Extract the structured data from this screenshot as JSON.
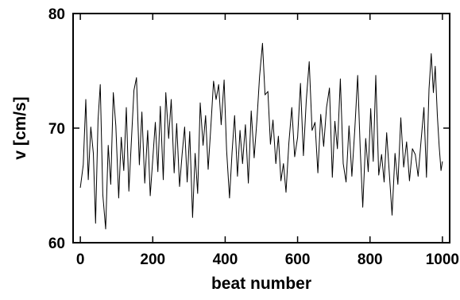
{
  "chart_data": {
    "type": "line",
    "title": "",
    "xlabel": "beat number",
    "ylabel": "v [cm/s]",
    "xlim": [
      -20,
      1020
    ],
    "ylim": [
      60,
      80
    ],
    "xticks": [
      0,
      200,
      400,
      600,
      800,
      1000
    ],
    "yticks": [
      60,
      70,
      80
    ],
    "grid": false,
    "legend": "none",
    "series": [
      {
        "color": "#000000",
        "points": [
          [
            0,
            64.8
          ],
          [
            8,
            66.8
          ],
          [
            15,
            72.5
          ],
          [
            22,
            65.5
          ],
          [
            29,
            70.1
          ],
          [
            36,
            67.8
          ],
          [
            42,
            61.7
          ],
          [
            49,
            70.7
          ],
          [
            55,
            73.8
          ],
          [
            62,
            64.2
          ],
          [
            70,
            61.2
          ],
          [
            77,
            68.5
          ],
          [
            84,
            65.1
          ],
          [
            91,
            73.1
          ],
          [
            98,
            70.2
          ],
          [
            106,
            63.9
          ],
          [
            113,
            69.2
          ],
          [
            120,
            66.3
          ],
          [
            127,
            71.8
          ],
          [
            134,
            64.5
          ],
          [
            141,
            68.9
          ],
          [
            148,
            73.3
          ],
          [
            155,
            74.4
          ],
          [
            163,
            66.8
          ],
          [
            170,
            71.4
          ],
          [
            178,
            65.2
          ],
          [
            186,
            69.8
          ],
          [
            193,
            64.1
          ],
          [
            200,
            67.3
          ],
          [
            207,
            70.5
          ],
          [
            214,
            66.2
          ],
          [
            221,
            71.9
          ],
          [
            229,
            65.5
          ],
          [
            236,
            73.1
          ],
          [
            244,
            69.1
          ],
          [
            251,
            72.5
          ],
          [
            259,
            66.1
          ],
          [
            266,
            70.4
          ],
          [
            274,
            64.9
          ],
          [
            281,
            67.7
          ],
          [
            288,
            70.1
          ],
          [
            295,
            65.3
          ],
          [
            302,
            69.7
          ],
          [
            310,
            62.2
          ],
          [
            317,
            67.8
          ],
          [
            324,
            64.3
          ],
          [
            331,
            72.2
          ],
          [
            339,
            68.5
          ],
          [
            346,
            71.1
          ],
          [
            353,
            66.4
          ],
          [
            360,
            69.9
          ],
          [
            368,
            74.1
          ],
          [
            375,
            72.5
          ],
          [
            382,
            73.8
          ],
          [
            389,
            70.3
          ],
          [
            397,
            74.2
          ],
          [
            404,
            68.1
          ],
          [
            412,
            63.9
          ],
          [
            419,
            67.9
          ],
          [
            426,
            71.1
          ],
          [
            434,
            65.8
          ],
          [
            441,
            69.8
          ],
          [
            448,
            66.9
          ],
          [
            456,
            70.3
          ],
          [
            464,
            65.2
          ],
          [
            472,
            71.5
          ],
          [
            480,
            67.4
          ],
          [
            488,
            70.8
          ],
          [
            495,
            74.5
          ],
          [
            503,
            77.4
          ],
          [
            510,
            72.9
          ],
          [
            518,
            73.2
          ],
          [
            525,
            68.6
          ],
          [
            532,
            70.7
          ],
          [
            540,
            66.9
          ],
          [
            547,
            69.3
          ],
          [
            554,
            65.4
          ],
          [
            561,
            66.9
          ],
          [
            568,
            64.4
          ],
          [
            576,
            68.7
          ],
          [
            584,
            71.8
          ],
          [
            592,
            67.5
          ],
          [
            600,
            69.2
          ],
          [
            608,
            73.9
          ],
          [
            616,
            67.6
          ],
          [
            624,
            72.4
          ],
          [
            632,
            75.8
          ],
          [
            640,
            69.8
          ],
          [
            648,
            70.5
          ],
          [
            656,
            66.1
          ],
          [
            664,
            71.2
          ],
          [
            672,
            68.4
          ],
          [
            680,
            71.8
          ],
          [
            688,
            73.5
          ],
          [
            696,
            65.7
          ],
          [
            703,
            70.6
          ],
          [
            710,
            68.2
          ],
          [
            718,
            74.3
          ],
          [
            726,
            66.9
          ],
          [
            734,
            65.3
          ],
          [
            742,
            70.2
          ],
          [
            750,
            65.8
          ],
          [
            758,
            69.9
          ],
          [
            766,
            74.6
          ],
          [
            773,
            68.2
          ],
          [
            780,
            63.1
          ],
          [
            788,
            69.1
          ],
          [
            795,
            66.2
          ],
          [
            802,
            71.7
          ],
          [
            809,
            67.1
          ],
          [
            816,
            74.6
          ],
          [
            824,
            65.9
          ],
          [
            832,
            67.7
          ],
          [
            839,
            65.3
          ],
          [
            846,
            69.6
          ],
          [
            853,
            66.2
          ],
          [
            861,
            62.4
          ],
          [
            869,
            67.8
          ],
          [
            877,
            65.1
          ],
          [
            885,
            70.9
          ],
          [
            893,
            66.6
          ],
          [
            901,
            68.8
          ],
          [
            909,
            65.4
          ],
          [
            917,
            68.2
          ],
          [
            925,
            67.7
          ],
          [
            933,
            65.8
          ],
          [
            941,
            68.9
          ],
          [
            949,
            71.8
          ],
          [
            956,
            65.7
          ],
          [
            963,
            73.4
          ],
          [
            969,
            76.5
          ],
          [
            975,
            73.1
          ],
          [
            980,
            75.4
          ],
          [
            986,
            71.1
          ],
          [
            991,
            68.4
          ],
          [
            996,
            66.3
          ],
          [
            1000,
            67.1
          ]
        ]
      }
    ]
  }
}
